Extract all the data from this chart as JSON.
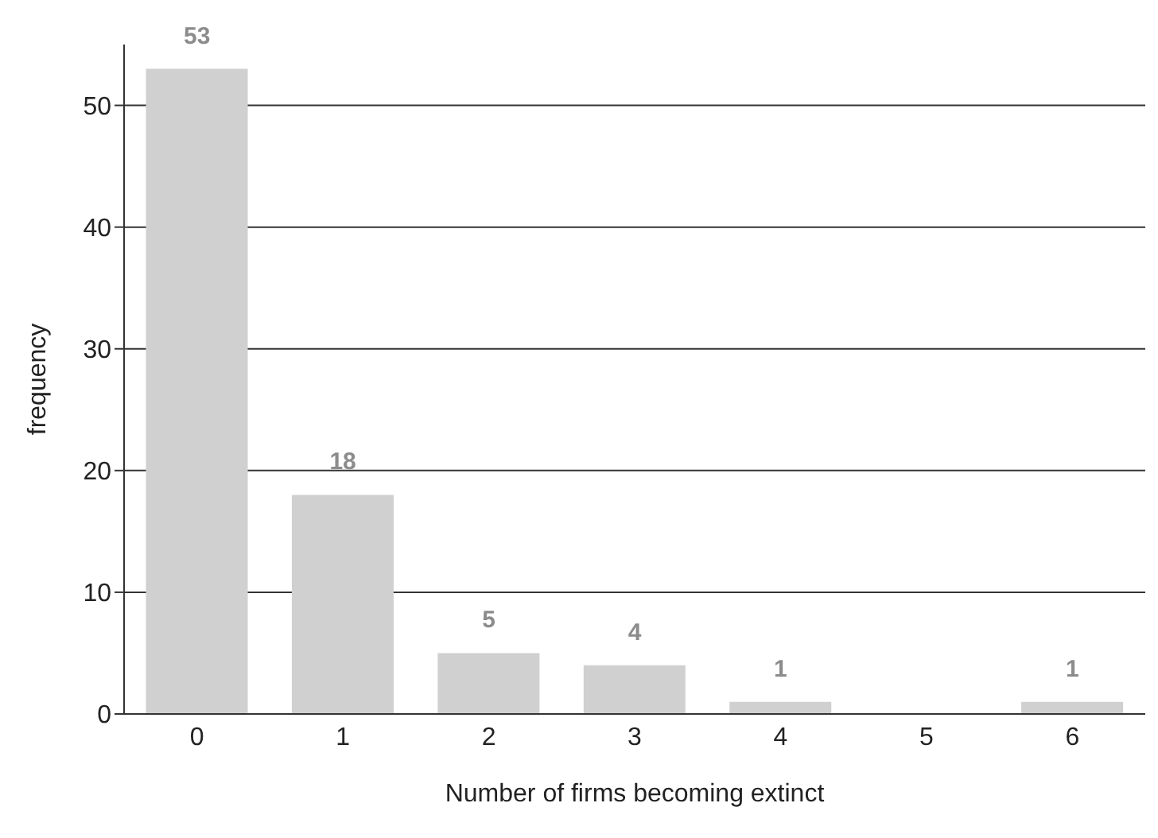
{
  "chart_data": {
    "type": "bar",
    "xlabel": "Number of firms becoming extinct",
    "ylabel": "frequency",
    "categories": [
      "0",
      "1",
      "2",
      "3",
      "4",
      "5",
      "6"
    ],
    "values": [
      53,
      18,
      5,
      4,
      1,
      0,
      1
    ],
    "value_labels": [
      "53",
      "18",
      "5",
      "4",
      "1",
      null,
      "1"
    ],
    "color": "#d0d0d0",
    "ylim": [
      0,
      55
    ],
    "yticks": [
      0,
      10,
      20,
      30,
      40,
      50
    ],
    "grid": "y"
  }
}
